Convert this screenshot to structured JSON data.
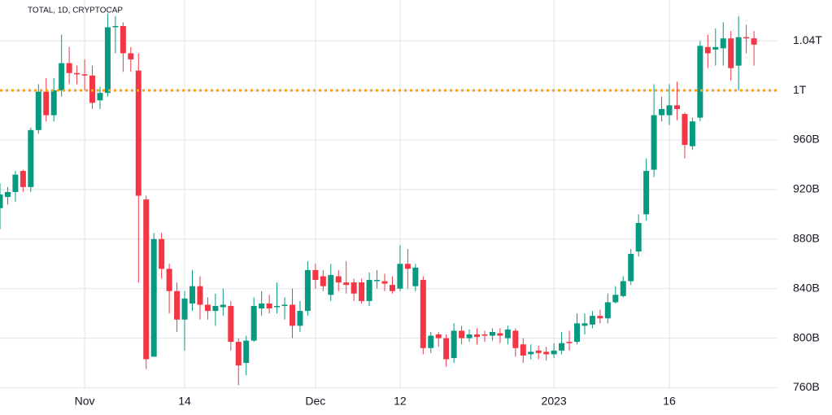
{
  "chart_data": {
    "type": "candlestick",
    "title": "TOTAL, 1D, CRYPTOCAP",
    "categories": [
      null,
      null,
      null,
      null,
      null,
      null,
      null,
      null,
      null,
      null,
      null,
      "Nov",
      null,
      null,
      null,
      null,
      null,
      null,
      null,
      null,
      null,
      null,
      null,
      null,
      "14",
      null,
      null,
      null,
      null,
      null,
      null,
      null,
      null,
      null,
      null,
      null,
      null,
      null,
      null,
      null,
      null,
      "Dec",
      null,
      null,
      null,
      null,
      null,
      null,
      null,
      null,
      null,
      null,
      "12",
      null,
      null,
      null,
      null,
      null,
      null,
      null,
      null,
      null,
      null,
      null,
      null,
      null,
      null,
      null,
      null,
      null,
      null,
      null,
      "2023",
      null,
      null,
      null,
      null,
      null,
      null,
      null,
      null,
      null,
      null,
      null,
      null,
      null,
      null,
      "16",
      null,
      null,
      null,
      null,
      null,
      null,
      null,
      null,
      null,
      null,
      null
    ],
    "open": [
      905,
      914,
      918,
      935,
      922,
      968,
      999,
      980,
      1000,
      1022,
      1014,
      1013,
      1012,
      992,
      998,
      1051,
      1052,
      1030,
      1016,
      912,
      785,
      880,
      856,
      838,
      815,
      828,
      842,
      827,
      822,
      825,
      826,
      797,
      780,
      798,
      824,
      828,
      825,
      826,
      827,
      810,
      822,
      855,
      850,
      835,
      850,
      845,
      845,
      845,
      830,
      846,
      846,
      843,
      840,
      860,
      842,
      847,
      792,
      803,
      800,
      784,
      806,
      800,
      803,
      803,
      802,
      804,
      800,
      806,
      795,
      787,
      790,
      789,
      787,
      790,
      797,
      797,
      810,
      811,
      818,
      816,
      829,
      834,
      846,
      870,
      900,
      936,
      980,
      980,
      988,
      981,
      955,
      978,
      1035,
      1033,
      1034,
      1042,
      1020,
      1043,
      1042
    ],
    "high": [
      925,
      922,
      935,
      936,
      970,
      1005,
      1010,
      1010,
      1045,
      1035,
      1020,
      1025,
      1020,
      1003,
      1062,
      1060,
      1055,
      1035,
      1030,
      915,
      885,
      885,
      860,
      845,
      838,
      855,
      850,
      833,
      836,
      840,
      830,
      800,
      802,
      833,
      838,
      835,
      845,
      833,
      840,
      830,
      862,
      860,
      855,
      860,
      855,
      862,
      848,
      848,
      853,
      855,
      852,
      850,
      875,
      872,
      860,
      850,
      805,
      805,
      803,
      812,
      810,
      807,
      808,
      806,
      808,
      808,
      810,
      808,
      800,
      795,
      794,
      793,
      796,
      805,
      806,
      820,
      820,
      822,
      823,
      836,
      842,
      850,
      872,
      900,
      945,
      1005,
      995,
      1005,
      1007,
      982,
      978,
      1040,
      1045,
      1050,
      1055,
      1048,
      1060,
      1053,
      1048
    ],
    "low": [
      888,
      908,
      910,
      918,
      918,
      965,
      975,
      975,
      995,
      1005,
      1005,
      1000,
      985,
      985,
      995,
      1030,
      1015,
      1015,
      845,
      775,
      788,
      848,
      820,
      805,
      790,
      822,
      815,
      815,
      810,
      818,
      790,
      762,
      770,
      797,
      818,
      820,
      820,
      815,
      800,
      805,
      818,
      840,
      838,
      830,
      838,
      836,
      830,
      828,
      826,
      840,
      838,
      836,
      838,
      840,
      838,
      787,
      788,
      793,
      777,
      780,
      795,
      797,
      795,
      797,
      798,
      796,
      795,
      785,
      780,
      783,
      783,
      782,
      784,
      787,
      790,
      795,
      803,
      808,
      812,
      812,
      828,
      833,
      843,
      866,
      895,
      930,
      975,
      972,
      976,
      945,
      952,
      975,
      1018,
      1020,
      1020,
      1008,
      1000,
      1030,
      1020
    ],
    "close": [
      916,
      918,
      932,
      922,
      968,
      999,
      980,
      1000,
      1022,
      1014,
      1013,
      1012,
      990,
      998,
      1051,
      1052,
      1030,
      1025,
      915,
      783,
      880,
      856,
      838,
      815,
      832,
      842,
      827,
      822,
      826,
      827,
      797,
      778,
      798,
      826,
      828,
      824,
      826,
      827,
      810,
      822,
      855,
      847,
      842,
      851,
      845,
      843,
      836,
      830,
      847,
      847,
      844,
      838,
      860,
      856,
      857,
      792,
      802,
      800,
      783,
      806,
      800,
      803,
      801,
      802,
      805,
      802,
      807,
      792,
      786,
      789,
      788,
      787,
      790,
      796,
      796,
      812,
      812,
      818,
      816,
      829,
      835,
      846,
      868,
      893,
      935,
      980,
      985,
      988,
      985,
      956,
      975,
      1036,
      1030,
      1035,
      1042,
      1018,
      1043,
      1042,
      1037
    ],
    "up_color": "#089981",
    "down_color": "#f23645",
    "hline": {
      "value": 1000,
      "color": "#f7a21b"
    },
    "ylim": [
      759,
      1073
    ],
    "yticks": [
      {
        "value": 760,
        "label": "760B"
      },
      {
        "value": 800,
        "label": "800B"
      },
      {
        "value": 840,
        "label": "840B"
      },
      {
        "value": 880,
        "label": "880B"
      },
      {
        "value": 920,
        "label": "920B"
      },
      {
        "value": 960,
        "label": "960B"
      },
      {
        "value": 1000,
        "label": "1T"
      },
      {
        "value": 1040,
        "label": "1.04T"
      }
    ],
    "grid": true
  }
}
